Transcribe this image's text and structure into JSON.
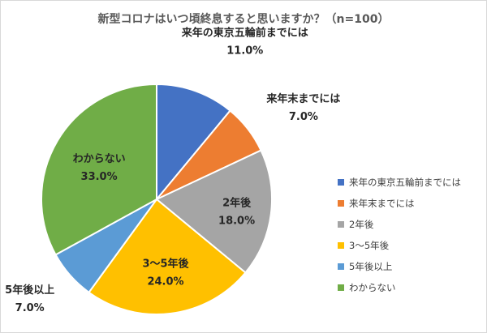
{
  "chart_data": {
    "type": "pie",
    "title": "新型コロナはいつ頃終息すると思いますか？（n=100）",
    "slices": [
      {
        "label": "来年の東京五輪前までには",
        "value": 11.0,
        "value_label": "11.0%",
        "color": "#4472c4"
      },
      {
        "label": "来年末までには",
        "value": 7.0,
        "value_label": "7.0%",
        "color": "#ed7d31"
      },
      {
        "label": "2年後",
        "value": 18.0,
        "value_label": "18.0%",
        "color": "#a5a5a5"
      },
      {
        "label": "3～5年後",
        "value": 24.0,
        "value_label": "24.0%",
        "color": "#ffc000"
      },
      {
        "label": "5年後以上",
        "value": 7.0,
        "value_label": "7.0%",
        "color": "#5b9bd5"
      },
      {
        "label": "わからない",
        "value": 33.0,
        "value_label": "33.0%",
        "color": "#70ad47"
      }
    ],
    "legend_position": "right"
  }
}
